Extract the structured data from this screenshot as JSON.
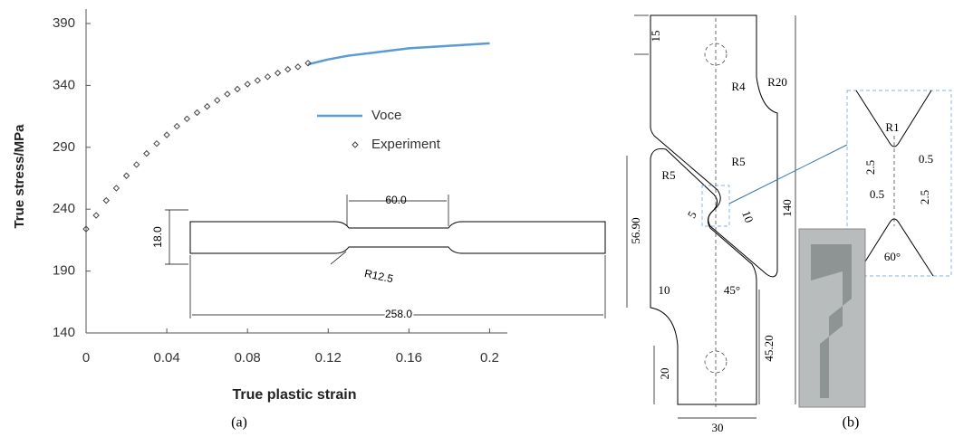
{
  "chart_data": {
    "type": "line",
    "y_label": "True stress/MPa",
    "x_label": "True plastic strain",
    "xlim": [
      0,
      0.22
    ],
    "ylim": [
      140,
      390
    ],
    "xticks": [
      0,
      0.04,
      0.08,
      0.12,
      0.16,
      0.2
    ],
    "yticks": [
      140,
      190,
      240,
      290,
      340,
      390
    ],
    "legend": "center right",
    "series": [
      {
        "name": "Voce",
        "type": "line",
        "color": "#5b9bd5",
        "x": [
          0.11,
          0.12,
          0.13,
          0.14,
          0.15,
          0.16,
          0.17,
          0.18,
          0.19,
          0.2
        ],
        "values": [
          357,
          361,
          364,
          366,
          368,
          370,
          371,
          372,
          373,
          374
        ]
      },
      {
        "name": "Experiment",
        "type": "scatter",
        "color": "#444444",
        "x": [
          0,
          0.005,
          0.01,
          0.015,
          0.02,
          0.025,
          0.03,
          0.035,
          0.04,
          0.045,
          0.05,
          0.055,
          0.06,
          0.065,
          0.07,
          0.075,
          0.08,
          0.085,
          0.09,
          0.095,
          0.1,
          0.105,
          0.11
        ],
        "values": [
          224,
          235,
          247,
          257,
          267,
          276,
          285,
          293,
          300,
          307,
          313,
          318,
          323,
          328,
          333,
          337,
          341,
          344,
          347,
          350,
          353,
          355,
          358
        ]
      }
    ]
  },
  "inset_a": {
    "width": "60.0",
    "height": "18.0",
    "radius": "R12.5",
    "length": "258.0"
  },
  "panel_b": {
    "d15": "15",
    "r4": "R4",
    "r20": "R20",
    "r5_right": "R5",
    "r5_left": "R5",
    "d5": "5",
    "d10_notch": "10",
    "d5690": "56.90",
    "d140": "140",
    "d10": "10",
    "angle45": "45°",
    "d4520": "45.20",
    "d20": "20",
    "d30": "30",
    "zoom": {
      "r1": "R1",
      "d25_left": "2.5",
      "d05_top": "0.5",
      "d05_bottom": "0.5",
      "d25_right": "2.5",
      "angle60": "60°"
    }
  },
  "panel_labels": [
    "(a)",
    "(b)"
  ]
}
